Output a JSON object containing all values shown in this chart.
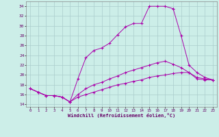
{
  "xlabel": "Windchill (Refroidissement éolien,°C)",
  "bg_color": "#cceee8",
  "grid_color": "#aacccc",
  "line_color": "#aa00aa",
  "xlim": [
    -0.5,
    23.5
  ],
  "ylim": [
    13.5,
    35.0
  ],
  "xticks": [
    0,
    1,
    2,
    3,
    4,
    5,
    6,
    7,
    8,
    9,
    10,
    11,
    12,
    13,
    14,
    15,
    16,
    17,
    18,
    19,
    20,
    21,
    22,
    23
  ],
  "yticks": [
    14,
    16,
    18,
    20,
    22,
    24,
    26,
    28,
    30,
    32,
    34
  ],
  "line1_x": [
    0,
    1,
    2,
    3,
    4,
    5,
    6,
    7,
    8,
    9,
    10,
    11,
    12,
    13,
    14,
    15,
    16,
    17,
    18
  ],
  "line1_y": [
    17.2,
    16.5,
    15.8,
    15.8,
    15.5,
    14.5,
    19.2,
    23.5,
    25.0,
    25.5,
    26.5,
    28.2,
    29.8,
    30.5,
    30.5,
    34.0,
    34.0,
    34.0,
    33.5
  ],
  "line2_x": [
    0,
    1,
    2,
    3,
    4,
    5,
    6,
    7,
    8,
    9,
    10,
    11,
    12,
    13,
    14,
    15,
    16,
    17,
    18,
    19,
    20,
    21,
    22,
    23
  ],
  "line2_y": [
    17.2,
    16.5,
    15.8,
    15.8,
    15.5,
    14.5,
    16.0,
    17.2,
    18.0,
    18.5,
    19.2,
    19.8,
    20.5,
    21.0,
    21.5,
    22.0,
    22.5,
    22.8,
    22.2,
    21.5,
    20.5,
    19.2,
    19.0,
    19.0
  ],
  "line3_x": [
    0,
    1,
    2,
    3,
    4,
    5,
    6,
    7,
    8,
    9,
    10,
    11,
    12,
    13,
    14,
    15,
    16,
    17,
    18,
    19,
    20,
    21,
    22,
    23
  ],
  "line3_y": [
    17.2,
    16.5,
    15.8,
    15.8,
    15.5,
    14.5,
    15.5,
    16.0,
    16.5,
    17.0,
    17.5,
    18.0,
    18.3,
    18.7,
    19.0,
    19.5,
    19.8,
    20.0,
    20.3,
    20.5,
    20.5,
    19.5,
    19.2,
    19.0
  ],
  "line4_x": [
    18,
    19,
    20,
    21,
    22,
    23
  ],
  "line4_y": [
    33.5,
    28.0,
    22.0,
    20.5,
    19.5,
    19.0
  ]
}
